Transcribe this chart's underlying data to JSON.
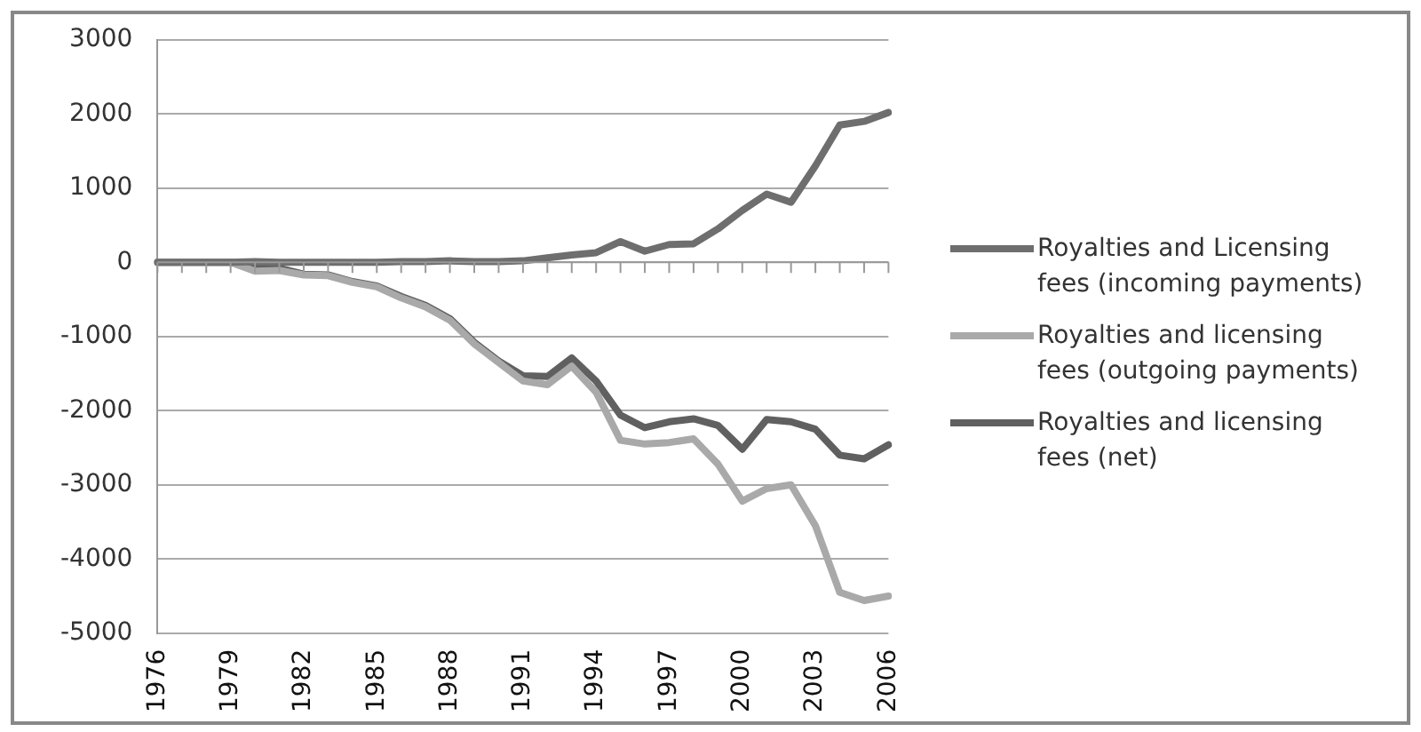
{
  "chart_data": {
    "type": "line",
    "categories": [
      "1976",
      null,
      null,
      "1979",
      null,
      null,
      "1982",
      null,
      null,
      "1985",
      null,
      null,
      "1988",
      null,
      null,
      "1991",
      null,
      null,
      "1994",
      null,
      null,
      "1997",
      null,
      null,
      "2000",
      null,
      null,
      "2003",
      null,
      null,
      "2006"
    ],
    "series": [
      {
        "name": "Royalties and Licensing fees (incoming payments)",
        "color": "#6e6e6e",
        "values": [
          0,
          0,
          0,
          0,
          10,
          0,
          0,
          0,
          0,
          0,
          10,
          10,
          20,
          10,
          10,
          20,
          60,
          100,
          130,
          280,
          150,
          240,
          250,
          450,
          700,
          920,
          810,
          1300,
          1850,
          1900,
          2020
        ]
      },
      {
        "name": "Royalties and licensing fees (outgoing payments)",
        "color": "#a9a9a9",
        "values": [
          0,
          0,
          0,
          0,
          -120,
          -110,
          -170,
          -180,
          -270,
          -330,
          -480,
          -600,
          -780,
          -1100,
          -1350,
          -1600,
          -1650,
          -1400,
          -1750,
          -2400,
          -2450,
          -2430,
          -2380,
          -2720,
          -3220,
          -3050,
          -3000,
          -3550,
          -4450,
          -4560,
          -4500
        ]
      },
      {
        "name": "Royalties and licensing fees (net)",
        "color": "#606060",
        "values": [
          0,
          0,
          0,
          0,
          -50,
          -80,
          -160,
          -170,
          -260,
          -320,
          -460,
          -580,
          -760,
          -1080,
          -1330,
          -1530,
          -1540,
          -1290,
          -1600,
          -2060,
          -2230,
          -2150,
          -2110,
          -2200,
          -2520,
          -2120,
          -2150,
          -2250,
          -2600,
          -2650,
          -2460
        ]
      }
    ],
    "ylim": [
      -5000,
      3000
    ],
    "yticks": [
      -5000,
      -4000,
      -3000,
      -2000,
      -1000,
      0,
      1000,
      2000,
      3000
    ],
    "grid": "y",
    "legend": "right",
    "marker": "none",
    "line_style": "solid"
  }
}
